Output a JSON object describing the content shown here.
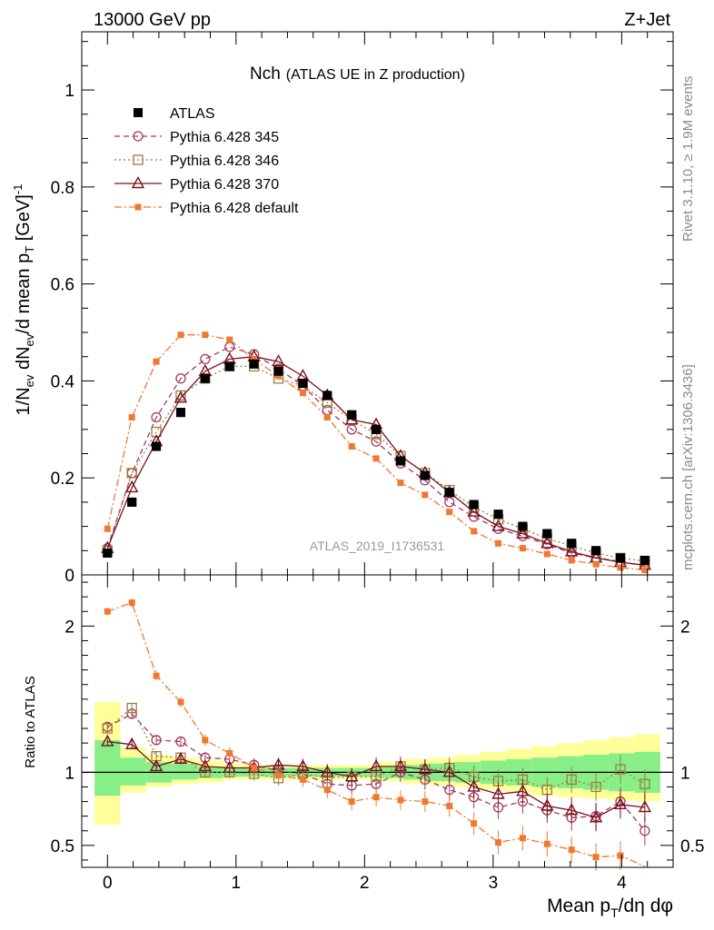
{
  "header": {
    "left": "13000 GeV pp",
    "right": "Z+Jet"
  },
  "chart_data": [
    {
      "type": "scatter",
      "panel": "main",
      "title_main": "Nch",
      "title_sub": "(ATLAS UE in Z production)",
      "ylabel": "1/N_ev dN_ev/d mean p_T [GeV]^-1",
      "xlabel": "Mean p_T/dη dφ",
      "xlim": [
        -0.2,
        4.4
      ],
      "ylim": [
        0,
        1.12
      ],
      "yticks": [
        "0",
        "0.2",
        "0.4",
        "0.6",
        "0.8",
        "1"
      ],
      "xticks": [
        "0",
        "1",
        "2",
        "3",
        "4"
      ],
      "watermark": "ATLAS_2019_I1736531",
      "legend_position": "top-left",
      "x": [
        0.0,
        0.19,
        0.38,
        0.57,
        0.76,
        0.95,
        1.14,
        1.33,
        1.52,
        1.71,
        1.9,
        2.09,
        2.28,
        2.47,
        2.66,
        2.85,
        3.04,
        3.23,
        3.42,
        3.61,
        3.8,
        3.99,
        4.18
      ],
      "series": [
        {
          "name": "ATLAS",
          "color": "#000000",
          "style": "data",
          "values": [
            0.045,
            0.15,
            0.265,
            0.335,
            0.405,
            0.43,
            0.435,
            0.42,
            0.395,
            0.37,
            0.33,
            0.3,
            0.235,
            0.205,
            0.17,
            0.145,
            0.125,
            0.1,
            0.085,
            0.065,
            0.05,
            0.035,
            0.03
          ]
        },
        {
          "name": "Pythia 6.428 345",
          "color": "#a33a5a",
          "style": "circle-dashed",
          "values": [
            0.055,
            0.21,
            0.325,
            0.405,
            0.445,
            0.47,
            0.455,
            0.425,
            0.39,
            0.34,
            0.3,
            0.275,
            0.23,
            0.195,
            0.15,
            0.12,
            0.095,
            0.08,
            0.063,
            0.045,
            0.035,
            0.028,
            0.018
          ]
        },
        {
          "name": "Pythia 6.428 346",
          "color": "#9b7f3c",
          "style": "square-dotted",
          "values": [
            0.05,
            0.21,
            0.295,
            0.37,
            0.405,
            0.43,
            0.43,
            0.405,
            0.39,
            0.355,
            0.32,
            0.29,
            0.245,
            0.21,
            0.175,
            0.14,
            0.115,
            0.095,
            0.075,
            0.06,
            0.045,
            0.035,
            0.028
          ]
        },
        {
          "name": "Pythia 6.428 370",
          "color": "#7a1020",
          "style": "triangle-solid",
          "values": [
            0.055,
            0.18,
            0.275,
            0.365,
            0.42,
            0.445,
            0.45,
            0.44,
            0.41,
            0.37,
            0.32,
            0.31,
            0.245,
            0.21,
            0.17,
            0.13,
            0.1,
            0.085,
            0.065,
            0.048,
            0.035,
            0.026,
            0.02
          ]
        },
        {
          "name": "Pythia 6.428 default",
          "color": "#f07830",
          "style": "smallsquare-dashdot",
          "values": [
            0.095,
            0.325,
            0.44,
            0.495,
            0.495,
            0.485,
            0.445,
            0.41,
            0.375,
            0.325,
            0.265,
            0.24,
            0.19,
            0.165,
            0.13,
            0.09,
            0.065,
            0.055,
            0.043,
            0.03,
            0.022,
            0.015,
            0.01
          ]
        }
      ]
    },
    {
      "type": "scatter",
      "panel": "ratio",
      "ylabel": "Ratio to ATLAS",
      "xlim": [
        -0.2,
        4.4
      ],
      "ylim": [
        0.35,
        2.35
      ],
      "yticks": [
        "0.5",
        "1",
        "2"
      ],
      "reference_line": 1,
      "band_edges": [
        -0.1,
        0.1,
        0.3,
        0.5,
        0.7,
        0.9,
        1.1,
        1.3,
        1.5,
        1.7,
        1.9,
        2.1,
        2.3,
        2.5,
        2.7,
        2.9,
        3.1,
        3.3,
        3.5,
        3.7,
        3.9,
        4.1,
        4.3
      ],
      "band_inner": [
        [
          0.84,
          1.22
        ],
        [
          0.91,
          1.1
        ],
        [
          0.93,
          1.07
        ],
        [
          0.95,
          1.06
        ],
        [
          0.96,
          1.04
        ],
        [
          0.97,
          1.03
        ],
        [
          0.97,
          1.03
        ],
        [
          0.97,
          1.03
        ],
        [
          0.97,
          1.03
        ],
        [
          0.97,
          1.03
        ],
        [
          0.97,
          1.03
        ],
        [
          0.96,
          1.04
        ],
        [
          0.95,
          1.05
        ],
        [
          0.94,
          1.06
        ],
        [
          0.93,
          1.07
        ],
        [
          0.92,
          1.08
        ],
        [
          0.91,
          1.09
        ],
        [
          0.9,
          1.1
        ],
        [
          0.89,
          1.11
        ],
        [
          0.88,
          1.12
        ],
        [
          0.87,
          1.13
        ],
        [
          0.86,
          1.14
        ]
      ],
      "band_outer": [
        [
          0.64,
          1.48
        ],
        [
          0.86,
          1.17
        ],
        [
          0.9,
          1.12
        ],
        [
          0.92,
          1.1
        ],
        [
          0.93,
          1.08
        ],
        [
          0.95,
          1.06
        ],
        [
          0.95,
          1.05
        ],
        [
          0.95,
          1.05
        ],
        [
          0.95,
          1.05
        ],
        [
          0.95,
          1.05
        ],
        [
          0.95,
          1.05
        ],
        [
          0.94,
          1.07
        ],
        [
          0.92,
          1.09
        ],
        [
          0.91,
          1.1
        ],
        [
          0.9,
          1.12
        ],
        [
          0.88,
          1.14
        ],
        [
          0.86,
          1.16
        ],
        [
          0.84,
          1.18
        ],
        [
          0.83,
          1.2
        ],
        [
          0.82,
          1.22
        ],
        [
          0.81,
          1.24
        ],
        [
          0.8,
          1.26
        ]
      ],
      "series": [
        {
          "name": "Pythia 6.428 345",
          "values": [
            1.31,
            1.4,
            1.22,
            1.21,
            1.1,
            1.09,
            1.05,
            1.01,
            0.99,
            0.92,
            0.91,
            0.92,
            1.0,
            0.95,
            0.88,
            0.83,
            0.76,
            0.8,
            0.74,
            0.69,
            0.7,
            0.8,
            0.6
          ]
        },
        {
          "name": "Pythia 6.428 346",
          "values": [
            1.3,
            1.44,
            1.11,
            1.1,
            1.0,
            1.0,
            0.99,
            0.96,
            0.99,
            0.96,
            0.97,
            0.97,
            1.04,
            1.02,
            1.03,
            0.97,
            0.94,
            0.95,
            0.88,
            0.95,
            0.9,
            1.02,
            0.92
          ]
        },
        {
          "name": "Pythia 6.428 370",
          "values": [
            1.21,
            1.19,
            1.04,
            1.09,
            1.04,
            1.03,
            1.03,
            1.05,
            1.04,
            1.0,
            0.97,
            1.04,
            1.04,
            1.02,
            1.0,
            0.9,
            0.85,
            0.87,
            0.77,
            0.74,
            0.69,
            0.78,
            0.76
          ]
        },
        {
          "name": "Pythia 6.428 default",
          "values": [
            2.1,
            2.16,
            1.66,
            1.48,
            1.22,
            1.13,
            1.03,
            0.98,
            0.95,
            0.88,
            0.8,
            0.83,
            0.81,
            0.8,
            0.77,
            0.65,
            0.52,
            0.55,
            0.51,
            0.47,
            0.42,
            0.43,
            0.32
          ]
        }
      ]
    }
  ],
  "side_text": {
    "rivet": "Rivet 3.1.10, ≥ 1.9M events",
    "mcplots": "mcplots.cern.ch [arXiv:1306.3436]"
  }
}
